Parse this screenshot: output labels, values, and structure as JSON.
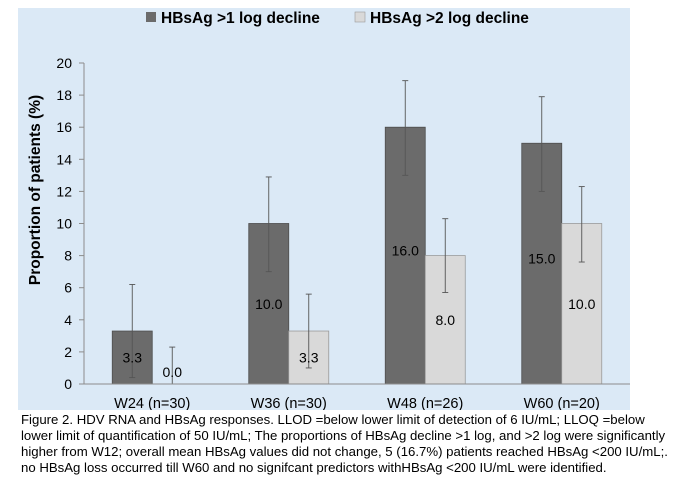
{
  "chart_data": {
    "type": "bar",
    "categories": [
      "W24 (n=30)",
      "W36 (n=30)",
      "W48 (n=26)",
      "W60 (n=20)"
    ],
    "series": [
      {
        "name": "HBsAg >1 log decline",
        "color": "#6b6b6b",
        "values": [
          3.3,
          10.0,
          16.0,
          15.0
        ],
        "value_labels": [
          "3.3",
          "10.0",
          "16.0",
          "15.0"
        ],
        "error_low": [
          0.4,
          7.0,
          13.0,
          12.0
        ],
        "error_high": [
          6.2,
          12.9,
          18.9,
          17.9
        ]
      },
      {
        "name": "HBsAg >2 log decline",
        "color": "#d9d9d9",
        "values": [
          0.0,
          3.3,
          8.0,
          10.0
        ],
        "value_labels": [
          "0.0",
          "3.3",
          "8.0",
          "10.0"
        ],
        "error_low": [
          0.0,
          1.0,
          5.7,
          7.6
        ],
        "error_high": [
          2.3,
          5.6,
          10.3,
          12.3
        ]
      }
    ],
    "ylabel": "Proportion of patients (%)",
    "xlabel": "",
    "ylim": [
      0,
      20
    ],
    "yticks": [
      0,
      2,
      4,
      6,
      8,
      10,
      12,
      14,
      16,
      18,
      20
    ],
    "grid": false,
    "legend_position": "top",
    "plot_background": "#dbe9f6"
  },
  "caption": "Figure 2. HDV RNA and HBsAg responses. LLOD =below lower limit of detection of 6 IU/mL;  LLOQ =below lower limit of quantification of 50 IU/mL; The proportions of HBsAg decline >1 log, and >2 log were significantly higher from W12; overall mean HBsAg values did not change, 5 (16.7%) patients reached HBsAg <200 IU/mL;. no HBsAg loss occurred till W60 and no signifcant predictors withHBsAg <200 IU/mL were identified."
}
